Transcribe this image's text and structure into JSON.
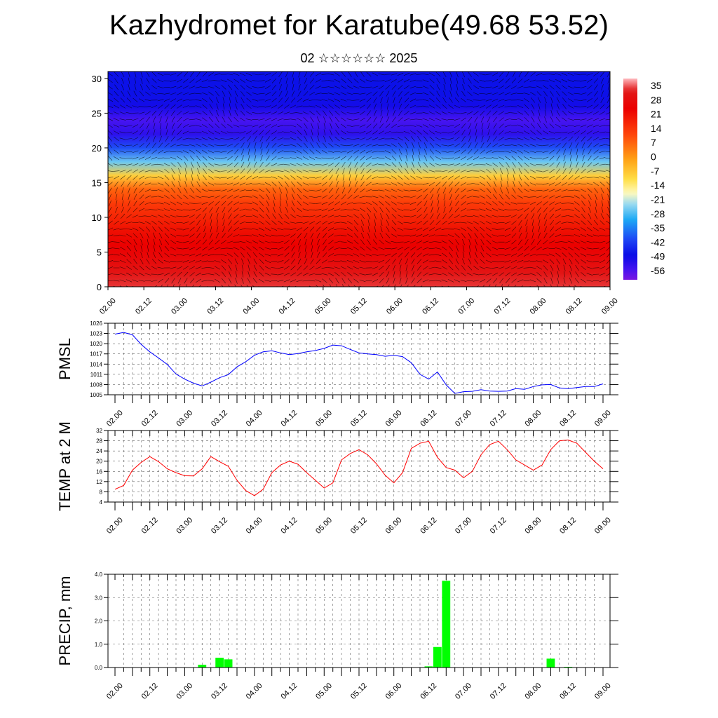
{
  "header": {
    "title": "Kazhydromet for Karatube(49.68 53.52)",
    "subtitle": "02 ☆☆☆☆☆☆ 2025"
  },
  "colors": {
    "pmsl_line": "#0000ff",
    "temp_line": "#ff0000",
    "precip_bar": "#00ff00"
  },
  "chart_data": [
    {
      "type": "heatmap",
      "title": "",
      "x_ticks": [
        "02.00",
        "02.12",
        "03.00",
        "03.12",
        "04.00",
        "04.12",
        "05.00",
        "05.12",
        "06.00",
        "06.12",
        "07.00",
        "07.12",
        "08.00",
        "08.12",
        "09.00"
      ],
      "y_ticks": [
        0,
        5,
        10,
        15,
        20,
        25,
        30
      ],
      "ylim": [
        0,
        31
      ],
      "colorbar_labels": [
        "35",
        "28",
        "21",
        "14",
        "7",
        "0",
        "-7",
        "-14",
        "-21",
        "-28",
        "-35",
        "-42",
        "-49",
        "-56"
      ],
      "colorbar_range": [
        -63,
        38
      ],
      "overlay": "wind vectors",
      "temperature_profile": {
        "levels": [
          0,
          2,
          4,
          6,
          8,
          10,
          12,
          14,
          16,
          18,
          20,
          22,
          24,
          26,
          28,
          31
        ],
        "values": [
          33,
          30,
          26,
          23,
          20,
          16,
          12,
          6,
          -10,
          -28,
          -42,
          -55,
          -58,
          -52,
          -50,
          -50
        ]
      }
    },
    {
      "type": "line",
      "ylabel": "PMSL",
      "x_ticks": [
        "02.00",
        "02.12",
        "03.00",
        "03.12",
        "04.00",
        "04.12",
        "05.00",
        "05.12",
        "06.00",
        "06.12",
        "07.00",
        "07.12",
        "08.00",
        "08.12",
        "09.00"
      ],
      "y_ticks": [
        1005,
        1008,
        1011,
        1014,
        1017,
        1020,
        1023,
        1026
      ],
      "ylim": [
        1005,
        1026
      ],
      "grid": true,
      "series": [
        {
          "values": [
            1022.8,
            1023.3,
            1022.6,
            1019.8,
            1017.6,
            1015.8,
            1013.9,
            1011.1,
            1009.6,
            1008.4,
            1007.6,
            1008.7,
            1010.0,
            1010.9,
            1013.2,
            1014.7,
            1016.6,
            1017.6,
            1017.9,
            1017.3,
            1016.8,
            1017.1,
            1017.6,
            1018.0,
            1018.6,
            1019.6,
            1019.4,
            1018.3,
            1017.3,
            1017.0,
            1016.8,
            1016.3,
            1016.6,
            1016.2,
            1014.4,
            1011.0,
            1009.6,
            1011.7,
            1007.9,
            1005.4,
            1005.9,
            1006.0,
            1006.5,
            1006.1,
            1006.0,
            1006.1,
            1006.8,
            1006.6,
            1007.4,
            1007.9,
            1008.0,
            1007.0,
            1006.8,
            1007.1,
            1007.4,
            1007.4,
            1008.2
          ]
        }
      ]
    },
    {
      "type": "line",
      "ylabel": "TEMP at 2 M",
      "x_ticks": [
        "02.00",
        "02.12",
        "03.00",
        "03.12",
        "04.00",
        "04.12",
        "05.00",
        "05.12",
        "06.00",
        "06.12",
        "07.00",
        "07.12",
        "08.00",
        "08.12",
        "09.00"
      ],
      "y_ticks": [
        4,
        8,
        12,
        16,
        20,
        24,
        28,
        32
      ],
      "ylim": [
        4,
        32
      ],
      "grid": true,
      "series": [
        {
          "values": [
            9.0,
            10.5,
            16.5,
            19.5,
            21.8,
            19.8,
            17.0,
            15.5,
            14.3,
            14.2,
            17.0,
            21.8,
            19.8,
            18.0,
            12.5,
            8.5,
            6.5,
            9.0,
            15.5,
            18.5,
            20.0,
            18.8,
            15.5,
            12.5,
            9.5,
            11.5,
            20.5,
            23.0,
            24.5,
            22.5,
            19.0,
            14.5,
            11.5,
            15.5,
            25.0,
            27.0,
            27.8,
            21.5,
            17.5,
            16.5,
            13.5,
            16.0,
            22.5,
            26.5,
            27.8,
            24.5,
            20.5,
            18.5,
            16.5,
            18.5,
            24.5,
            28.0,
            28.3,
            27.0,
            23.5,
            20.0,
            17.0
          ]
        }
      ]
    },
    {
      "type": "bar",
      "ylabel": "PRECIP, mm",
      "x_ticks": [
        "02.00",
        "02.12",
        "03.00",
        "03.12",
        "04.00",
        "04.12",
        "05.00",
        "05.12",
        "06.00",
        "06.12",
        "07.00",
        "07.12",
        "08.00",
        "08.12",
        "09.00"
      ],
      "y_ticks": [
        "0.0",
        "1.0",
        "2.0",
        "3.0",
        "4.0"
      ],
      "ylim": [
        0,
        4
      ],
      "grid": true,
      "values": [
        0,
        0,
        0,
        0,
        0,
        0,
        0,
        0,
        0,
        0,
        0.12,
        0,
        0.42,
        0.35,
        0,
        0,
        0,
        0,
        0,
        0,
        0,
        0,
        0,
        0,
        0,
        0,
        0,
        0,
        0,
        0,
        0,
        0,
        0,
        0,
        0,
        0,
        0.05,
        0.88,
        3.72,
        0,
        0,
        0,
        0,
        0,
        0,
        0,
        0,
        0,
        0,
        0,
        0.38,
        0,
        0.03,
        0,
        0,
        0,
        0
      ]
    }
  ]
}
